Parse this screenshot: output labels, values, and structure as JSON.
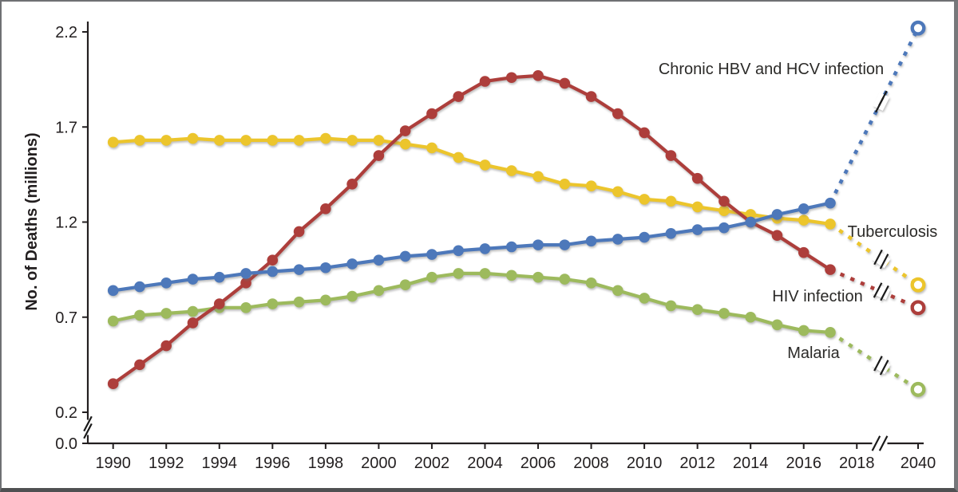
{
  "window": {
    "background": "#ffffff",
    "border_color": "#6f7073"
  },
  "chart_data": {
    "type": "line",
    "title": "",
    "xlabel": "",
    "ylabel": "No. of Deaths (millions)",
    "grid": "off",
    "x_years": [
      1990,
      1991,
      1992,
      1993,
      1994,
      1995,
      1996,
      1997,
      1998,
      1999,
      2000,
      2001,
      2002,
      2003,
      2004,
      2005,
      2006,
      2007,
      2008,
      2009,
      2010,
      2011,
      2012,
      2013,
      2014,
      2015,
      2016,
      2017
    ],
    "projection_year": 2040,
    "x_ticks": [
      1990,
      1992,
      1994,
      1996,
      1998,
      2000,
      2002,
      2004,
      2006,
      2008,
      2010,
      2012,
      2014,
      2016,
      2018,
      2040
    ],
    "y_tick_values": [
      0.0,
      0.2,
      0.7,
      1.2,
      1.7,
      2.2
    ],
    "y_tick_labels": [
      "0.0",
      "0.2",
      "0.7",
      "1.2",
      "1.7",
      "2.2"
    ],
    "axis_breaks": {
      "y_axis_between": [
        0.0,
        0.2
      ],
      "x_axis_between": [
        2018,
        2040
      ],
      "projection_lines_broken": true
    },
    "marker_style": "filled circles on solid history, dotted projection ending in open circle",
    "series": [
      {
        "name": "Chronic HBV and HCV infection",
        "color": "#4d78ba",
        "values": [
          0.84,
          0.86,
          0.88,
          0.9,
          0.91,
          0.93,
          0.94,
          0.95,
          0.96,
          0.98,
          1.0,
          1.02,
          1.03,
          1.05,
          1.06,
          1.07,
          1.08,
          1.08,
          1.1,
          1.11,
          1.12,
          1.14,
          1.16,
          1.17,
          1.2,
          1.24,
          1.27,
          1.3
        ],
        "projection_2040": 2.22
      },
      {
        "name": "Tuberculosis",
        "color": "#ecc52c",
        "values": [
          1.62,
          1.63,
          1.63,
          1.64,
          1.63,
          1.63,
          1.63,
          1.63,
          1.64,
          1.63,
          1.63,
          1.61,
          1.59,
          1.54,
          1.5,
          1.47,
          1.44,
          1.4,
          1.39,
          1.36,
          1.32,
          1.31,
          1.28,
          1.26,
          1.24,
          1.22,
          1.21,
          1.19
        ],
        "projection_2040": 0.87
      },
      {
        "name": "HIV infection",
        "color": "#ad3e3b",
        "values": [
          0.35,
          0.45,
          0.55,
          0.67,
          0.77,
          0.88,
          1.0,
          1.15,
          1.27,
          1.4,
          1.55,
          1.68,
          1.77,
          1.86,
          1.94,
          1.96,
          1.97,
          1.93,
          1.86,
          1.77,
          1.67,
          1.55,
          1.43,
          1.31,
          1.2,
          1.13,
          1.04,
          0.95
        ],
        "projection_2040": 0.75
      },
      {
        "name": "Malaria",
        "color": "#9dba5d",
        "values": [
          0.68,
          0.71,
          0.72,
          0.73,
          0.75,
          0.75,
          0.77,
          0.78,
          0.79,
          0.81,
          0.84,
          0.87,
          0.91,
          0.93,
          0.93,
          0.92,
          0.91,
          0.9,
          0.88,
          0.84,
          0.8,
          0.76,
          0.74,
          0.72,
          0.7,
          0.66,
          0.63,
          0.62
        ],
        "projection_2040": 0.32
      }
    ]
  }
}
